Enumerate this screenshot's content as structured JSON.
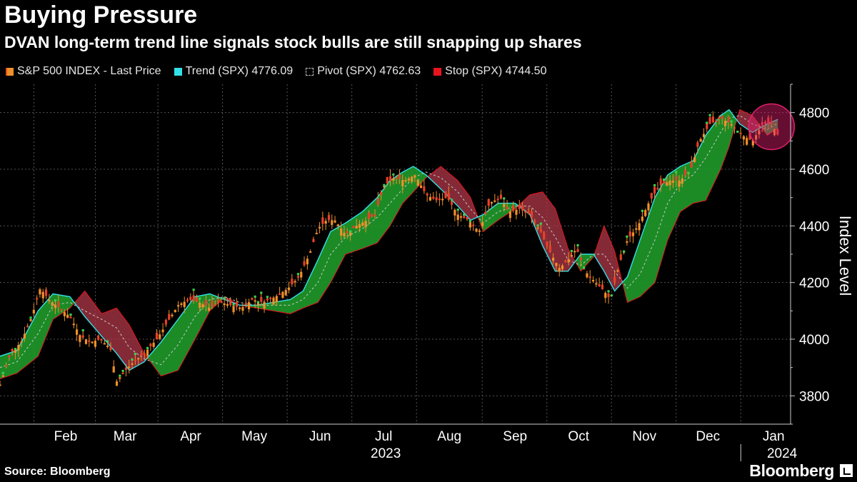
{
  "chart_data": {
    "type": "line",
    "title": "Buying Pressure",
    "subtitle": "DVAN long-term trend line signals stock bulls are still snapping up shares",
    "ylabel": "Index Level",
    "ylim": [
      3700,
      4900
    ],
    "yticks": [
      3800,
      4000,
      4200,
      4400,
      4600,
      4800
    ],
    "month_ticks": [
      {
        "label": "Feb",
        "day": 31
      },
      {
        "label": "Mar",
        "day": 59
      },
      {
        "label": "Apr",
        "day": 90
      },
      {
        "label": "May",
        "day": 120
      },
      {
        "label": "Jun",
        "day": 151
      },
      {
        "label": "Jul",
        "day": 181
      },
      {
        "label": "Aug",
        "day": 212
      },
      {
        "label": "Sep",
        "day": 243
      },
      {
        "label": "Oct",
        "day": 273
      },
      {
        "label": "Nov",
        "day": 304
      },
      {
        "label": "Dec",
        "day": 334
      },
      {
        "label": "Jan",
        "day": 365
      }
    ],
    "x_domain_days": [
      0,
      373
    ],
    "year_labels": [
      {
        "label": "2023",
        "day": 182
      },
      {
        "label": "2024",
        "day": 369
      }
    ],
    "series": [
      {
        "name": "S&P 500 INDEX - Last Price",
        "kind": "price",
        "points": [
          [
            0,
            3840
          ],
          [
            5,
            3950
          ],
          [
            10,
            3990
          ],
          [
            15,
            4080
          ],
          [
            19,
            4180
          ],
          [
            23,
            4140
          ],
          [
            28,
            4110
          ],
          [
            33,
            4080
          ],
          [
            38,
            4010
          ],
          [
            43,
            3990
          ],
          [
            47,
            4000
          ],
          [
            52,
            3970
          ],
          [
            55,
            3850
          ],
          [
            58,
            3880
          ],
          [
            63,
            3920
          ],
          [
            68,
            3950
          ],
          [
            74,
            4000
          ],
          [
            79,
            4060
          ],
          [
            84,
            4120
          ],
          [
            89,
            4140
          ],
          [
            94,
            4130
          ],
          [
            99,
            4110
          ],
          [
            104,
            4130
          ],
          [
            109,
            4120
          ],
          [
            114,
            4110
          ],
          [
            119,
            4140
          ],
          [
            124,
            4130
          ],
          [
            130,
            4150
          ],
          [
            136,
            4180
          ],
          [
            141,
            4220
          ],
          [
            146,
            4300
          ],
          [
            150,
            4390
          ],
          [
            154,
            4420
          ],
          [
            158,
            4420
          ],
          [
            163,
            4370
          ],
          [
            168,
            4400
          ],
          [
            173,
            4420
          ],
          [
            177,
            4440
          ],
          [
            181,
            4540
          ],
          [
            186,
            4570
          ],
          [
            191,
            4560
          ],
          [
            196,
            4580
          ],
          [
            201,
            4510
          ],
          [
            206,
            4490
          ],
          [
            211,
            4500
          ],
          [
            216,
            4440
          ],
          [
            221,
            4420
          ],
          [
            226,
            4380
          ],
          [
            231,
            4480
          ],
          [
            236,
            4500
          ],
          [
            240,
            4450
          ],
          [
            245,
            4460
          ],
          [
            250,
            4440
          ],
          [
            255,
            4380
          ],
          [
            260,
            4300
          ],
          [
            264,
            4250
          ],
          [
            268,
            4280
          ],
          [
            272,
            4320
          ],
          [
            276,
            4240
          ],
          [
            281,
            4200
          ],
          [
            285,
            4170
          ],
          [
            288,
            4140
          ],
          [
            292,
            4260
          ],
          [
            296,
            4350
          ],
          [
            301,
            4400
          ],
          [
            306,
            4480
          ],
          [
            311,
            4540
          ],
          [
            316,
            4560
          ],
          [
            321,
            4560
          ],
          [
            326,
            4600
          ],
          [
            330,
            4700
          ],
          [
            335,
            4760
          ],
          [
            340,
            4780
          ],
          [
            345,
            4760
          ],
          [
            350,
            4720
          ],
          [
            355,
            4700
          ],
          [
            360,
            4760
          ],
          [
            364,
            4760
          ],
          [
            367,
            4720
          ]
        ]
      },
      {
        "name": "Trend (SPX)",
        "last_value": 4776.09,
        "color": "#33e0e8",
        "points": [
          [
            0,
            3940
          ],
          [
            8,
            3960
          ],
          [
            18,
            4100
          ],
          [
            25,
            4160
          ],
          [
            33,
            4150
          ],
          [
            40,
            4080
          ],
          [
            48,
            4010
          ],
          [
            55,
            3950
          ],
          [
            61,
            3890
          ],
          [
            68,
            3920
          ],
          [
            76,
            3990
          ],
          [
            84,
            4070
          ],
          [
            92,
            4150
          ],
          [
            99,
            4160
          ],
          [
            106,
            4140
          ],
          [
            113,
            4120
          ],
          [
            121,
            4120
          ],
          [
            129,
            4130
          ],
          [
            137,
            4140
          ],
          [
            143,
            4170
          ],
          [
            150,
            4280
          ],
          [
            156,
            4380
          ],
          [
            163,
            4410
          ],
          [
            171,
            4450
          ],
          [
            178,
            4500
          ],
          [
            184,
            4560
          ],
          [
            190,
            4590
          ],
          [
            195,
            4610
          ],
          [
            201,
            4580
          ],
          [
            208,
            4530
          ],
          [
            216,
            4470
          ],
          [
            222,
            4420
          ],
          [
            228,
            4440
          ],
          [
            235,
            4480
          ],
          [
            243,
            4480
          ],
          [
            250,
            4440
          ],
          [
            256,
            4330
          ],
          [
            262,
            4240
          ],
          [
            268,
            4240
          ],
          [
            274,
            4300
          ],
          [
            280,
            4300
          ],
          [
            285,
            4240
          ],
          [
            290,
            4170
          ],
          [
            296,
            4220
          ],
          [
            302,
            4350
          ],
          [
            309,
            4500
          ],
          [
            315,
            4580
          ],
          [
            321,
            4610
          ],
          [
            327,
            4630
          ],
          [
            333,
            4720
          ],
          [
            340,
            4790
          ],
          [
            344,
            4810
          ],
          [
            349,
            4760
          ],
          [
            355,
            4730
          ],
          [
            362,
            4760
          ],
          [
            367,
            4776
          ]
        ]
      },
      {
        "name": "Pivot (SPX)",
        "last_value": 4762.63,
        "color": "#c8c8c8",
        "points": [
          [
            0,
            3900
          ],
          [
            8,
            3920
          ],
          [
            18,
            4020
          ],
          [
            25,
            4120
          ],
          [
            33,
            4130
          ],
          [
            40,
            4100
          ],
          [
            48,
            4070
          ],
          [
            55,
            4040
          ],
          [
            61,
            3970
          ],
          [
            68,
            3930
          ],
          [
            76,
            3910
          ],
          [
            84,
            3980
          ],
          [
            92,
            4080
          ],
          [
            99,
            4140
          ],
          [
            106,
            4150
          ],
          [
            113,
            4130
          ],
          [
            121,
            4120
          ],
          [
            129,
            4120
          ],
          [
            137,
            4120
          ],
          [
            143,
            4140
          ],
          [
            150,
            4200
          ],
          [
            156,
            4300
          ],
          [
            163,
            4360
          ],
          [
            171,
            4390
          ],
          [
            178,
            4430
          ],
          [
            184,
            4480
          ],
          [
            190,
            4530
          ],
          [
            195,
            4570
          ],
          [
            201,
            4590
          ],
          [
            208,
            4570
          ],
          [
            216,
            4520
          ],
          [
            222,
            4460
          ],
          [
            228,
            4410
          ],
          [
            235,
            4450
          ],
          [
            243,
            4470
          ],
          [
            250,
            4470
          ],
          [
            256,
            4430
          ],
          [
            262,
            4360
          ],
          [
            268,
            4280
          ],
          [
            274,
            4260
          ],
          [
            280,
            4300
          ],
          [
            285,
            4300
          ],
          [
            290,
            4240
          ],
          [
            296,
            4180
          ],
          [
            302,
            4230
          ],
          [
            309,
            4350
          ],
          [
            315,
            4480
          ],
          [
            321,
            4550
          ],
          [
            327,
            4580
          ],
          [
            333,
            4640
          ],
          [
            340,
            4730
          ],
          [
            344,
            4780
          ],
          [
            349,
            4790
          ],
          [
            355,
            4760
          ],
          [
            362,
            4740
          ],
          [
            367,
            4763
          ]
        ]
      },
      {
        "name": "Stop (SPX)",
        "last_value": 4744.5,
        "color": "#e8141e",
        "points": [
          [
            0,
            3860
          ],
          [
            8,
            3880
          ],
          [
            18,
            3940
          ],
          [
            25,
            4070
          ],
          [
            33,
            4110
          ],
          [
            40,
            4170
          ],
          [
            48,
            4090
          ],
          [
            55,
            4110
          ],
          [
            61,
            4050
          ],
          [
            68,
            3950
          ],
          [
            76,
            3870
          ],
          [
            84,
            3890
          ],
          [
            92,
            4000
          ],
          [
            99,
            4100
          ],
          [
            106,
            4150
          ],
          [
            113,
            4120
          ],
          [
            121,
            4110
          ],
          [
            129,
            4100
          ],
          [
            137,
            4090
          ],
          [
            143,
            4110
          ],
          [
            150,
            4130
          ],
          [
            156,
            4200
          ],
          [
            163,
            4300
          ],
          [
            171,
            4320
          ],
          [
            178,
            4340
          ],
          [
            184,
            4400
          ],
          [
            190,
            4480
          ],
          [
            195,
            4520
          ],
          [
            201,
            4570
          ],
          [
            208,
            4610
          ],
          [
            216,
            4560
          ],
          [
            222,
            4500
          ],
          [
            228,
            4380
          ],
          [
            235,
            4420
          ],
          [
            243,
            4460
          ],
          [
            250,
            4510
          ],
          [
            256,
            4520
          ],
          [
            262,
            4460
          ],
          [
            268,
            4320
          ],
          [
            274,
            4240
          ],
          [
            280,
            4290
          ],
          [
            285,
            4400
          ],
          [
            290,
            4310
          ],
          [
            296,
            4130
          ],
          [
            302,
            4150
          ],
          [
            309,
            4200
          ],
          [
            315,
            4350
          ],
          [
            321,
            4450
          ],
          [
            327,
            4480
          ],
          [
            333,
            4490
          ],
          [
            340,
            4600
          ],
          [
            344,
            4680
          ],
          [
            349,
            4810
          ],
          [
            355,
            4790
          ],
          [
            362,
            4720
          ],
          [
            367,
            4745
          ]
        ]
      }
    ],
    "annotation": {
      "type": "circle",
      "day": 364,
      "value": 4750,
      "color": "#e0206e"
    }
  },
  "legend": {
    "price_label": "S&P 500 INDEX - Last Price",
    "trend_label": "Trend (SPX) 4776.09",
    "pivot_label": "Pivot (SPX) 4762.63",
    "stop_label": "Stop (SPX) 4744.50"
  },
  "footer": {
    "source": "Source: Bloomberg",
    "brand": "Bloomberg"
  },
  "colors": {
    "bull_fill": "#1f9a2a",
    "bear_fill": "#b0384a",
    "bar_orange": "#f0902a",
    "bar_red": "#e8402a",
    "bar_green": "#3ad050",
    "grid": "#555555",
    "axis": "#cccccc"
  }
}
